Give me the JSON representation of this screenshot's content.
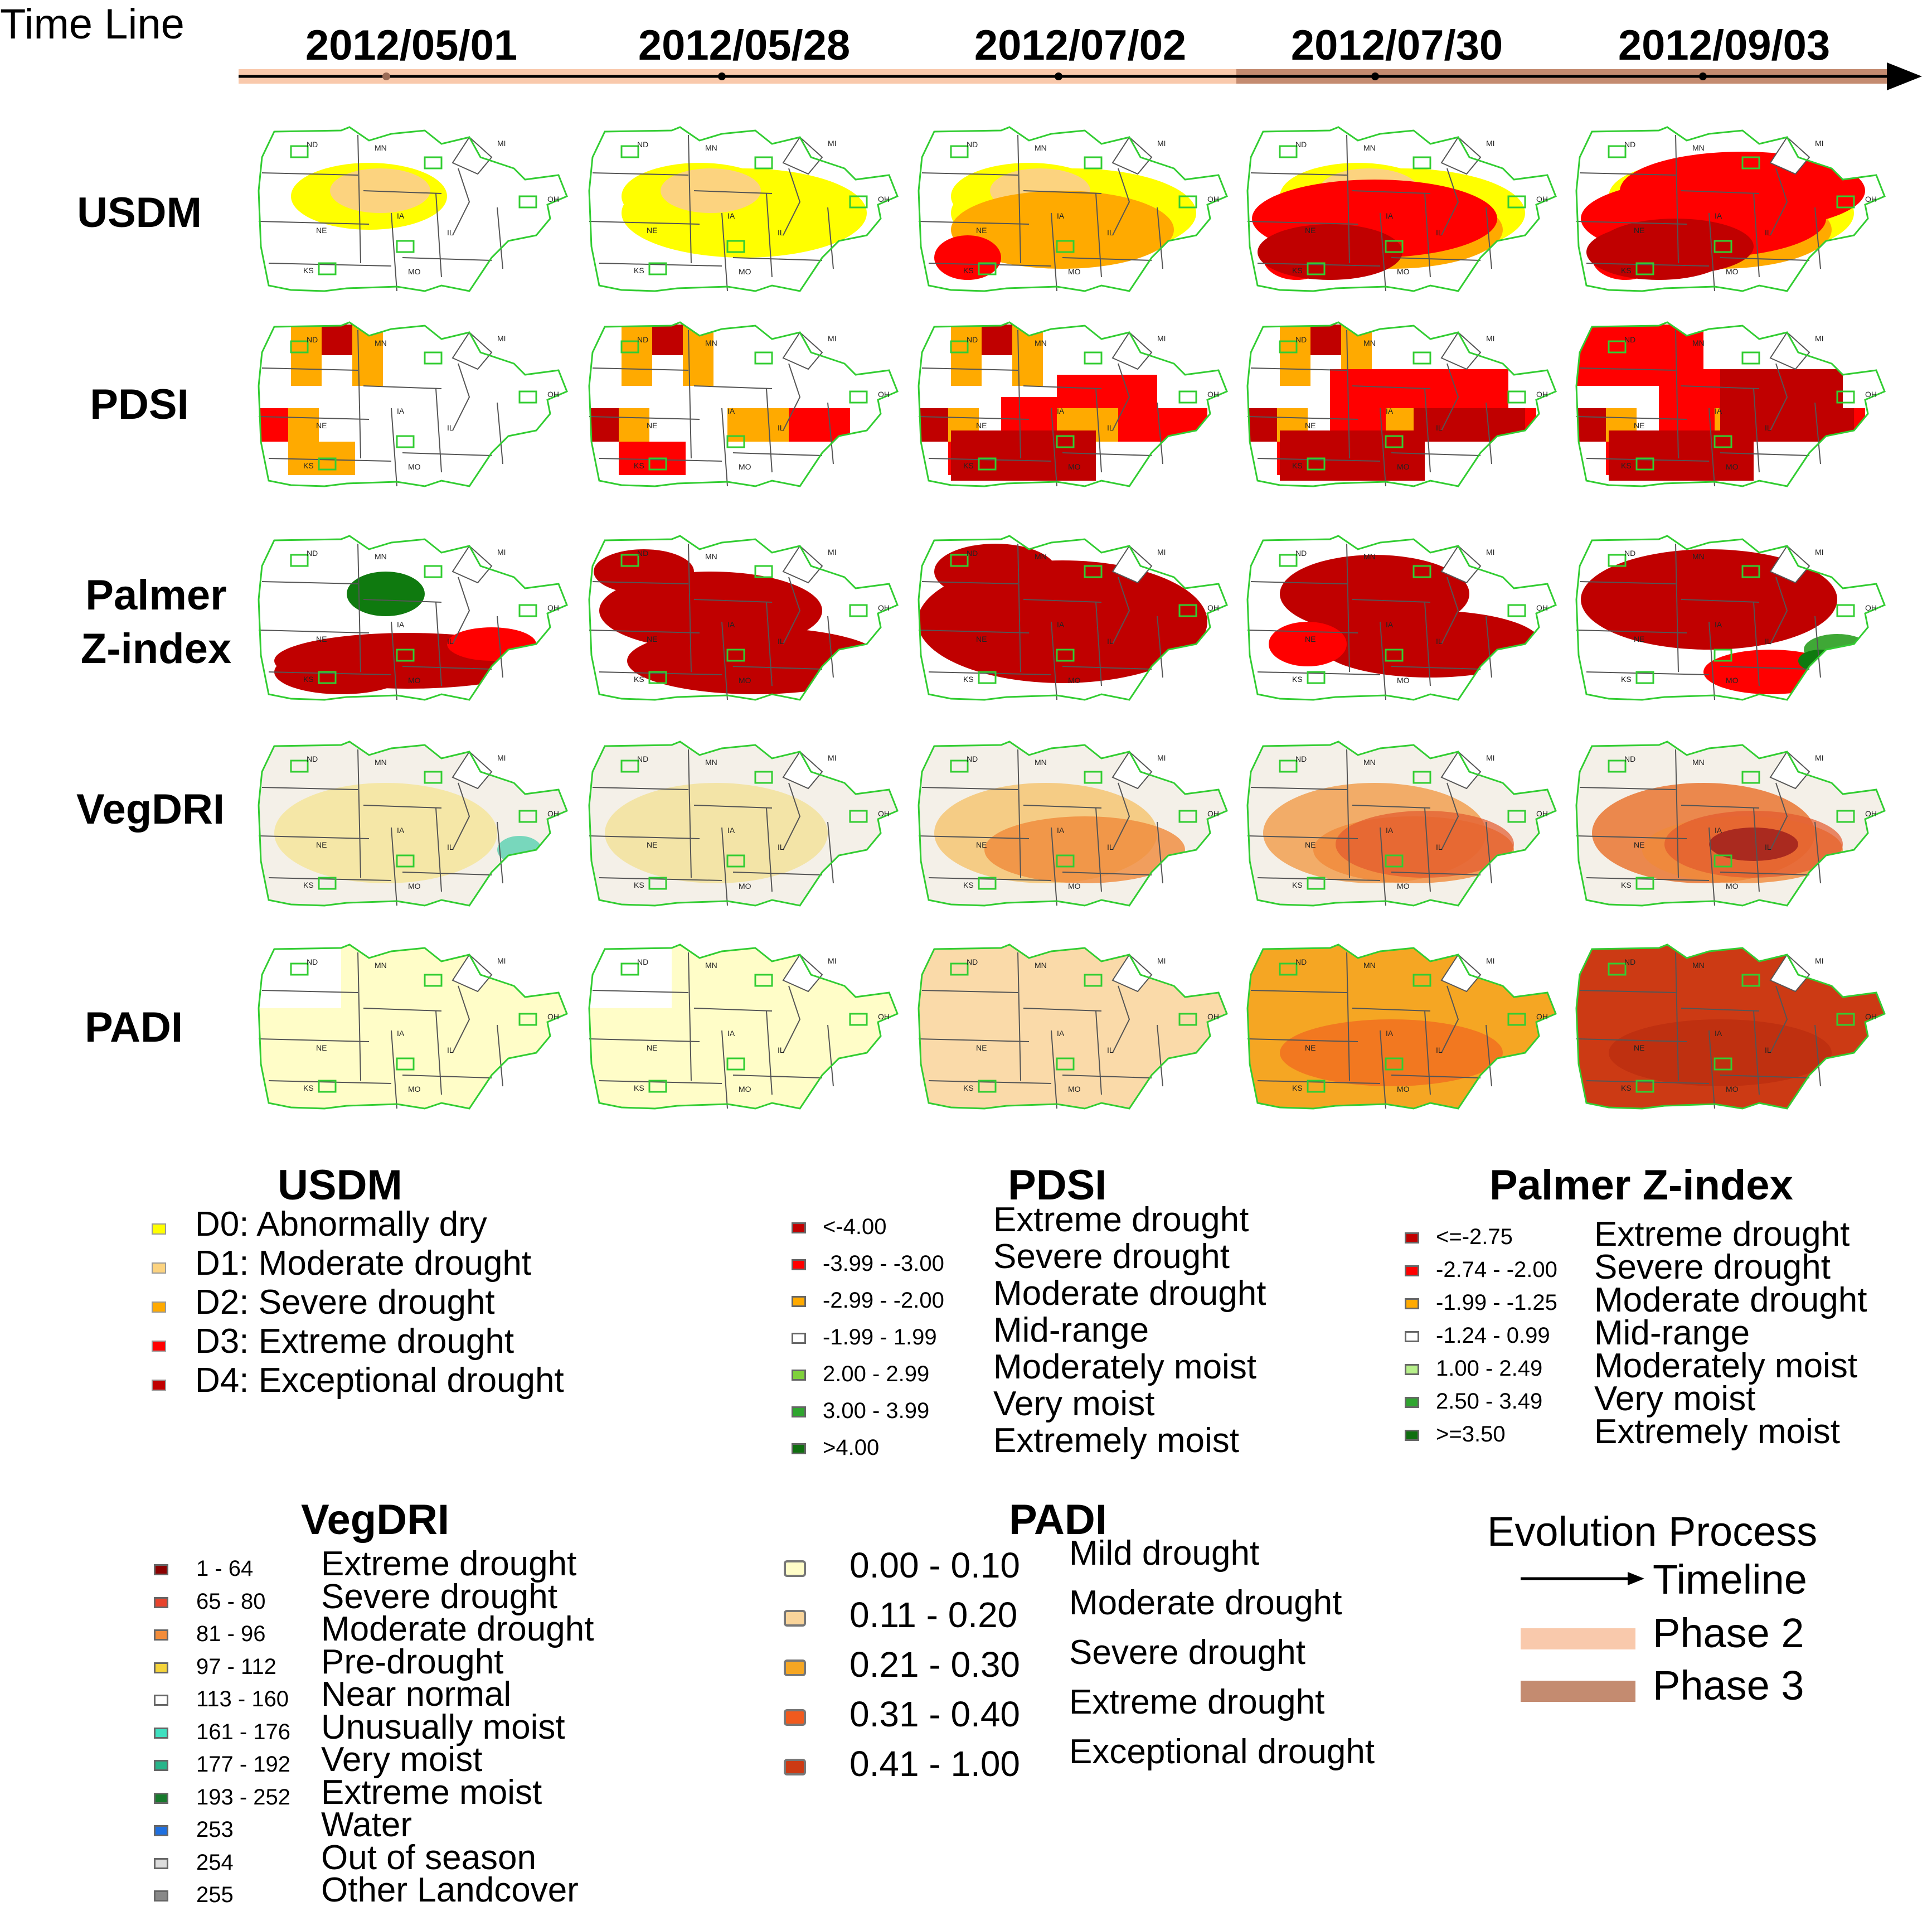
{
  "timeline": {
    "label": "Time Line",
    "dates": [
      "2012/05/01",
      "2012/05/28",
      "2012/07/02",
      "2012/07/30",
      "2012/09/03"
    ]
  },
  "rows": [
    "USDM",
    "PDSI",
    "Palmer\nZ-index",
    "VegDRI",
    "PADI"
  ],
  "state_labels": [
    "ND",
    "MN",
    "MI",
    "NE",
    "IA",
    "KS",
    "MO",
    "IL",
    "OH"
  ],
  "colors": {
    "d0": "#ffff00",
    "d1": "#fcd37f",
    "d2": "#ffaa00",
    "d3": "#ff0000",
    "d4": "#c00000",
    "green_light": "#a6f069",
    "green": "#3fa836",
    "green_dark": "#0f7a0f",
    "county_outline": "#32cd32",
    "phase2": "#f9c9ac",
    "phase3": "#c48b70"
  },
  "legends": {
    "usdm": {
      "title": "USDM",
      "items": [
        {
          "label": "D0: Abnormally dry",
          "color": "#ffff00"
        },
        {
          "label": "D1: Moderate drought",
          "color": "#fcd37f"
        },
        {
          "label": "D2: Severe drought",
          "color": "#ffaa00"
        },
        {
          "label": "D3: Extreme drought",
          "color": "#ff0000"
        },
        {
          "label": "D4: Exceptional drought",
          "color": "#c00000"
        }
      ]
    },
    "pdsi": {
      "title": "PDSI",
      "items": [
        {
          "range": "<-4.00",
          "label": "Extreme drought",
          "color": "#c00000"
        },
        {
          "range": "-3.99 - -3.00",
          "label": "Severe drought",
          "color": "#ff0000"
        },
        {
          "range": "-2.99 - -2.00",
          "label": "Moderate drought",
          "color": "#ffaa00"
        },
        {
          "range": "-1.99 - 1.99",
          "label": "Mid-range",
          "color": "#ffffff"
        },
        {
          "range": "2.00 - 2.99",
          "label": "Moderately moist",
          "color": "#7fd13b"
        },
        {
          "range": "3.00 - 3.99",
          "label": "Very moist",
          "color": "#2fa52f"
        },
        {
          "range": ">4.00",
          "label": "Extremely moist",
          "color": "#0f6f0f"
        }
      ]
    },
    "zindex": {
      "title": "Palmer Z-index",
      "items": [
        {
          "range": "<=-2.75",
          "label": "Extreme drought",
          "color": "#c00000"
        },
        {
          "range": "-2.74 - -2.00",
          "label": "Severe drought",
          "color": "#ff0000"
        },
        {
          "range": "-1.99 - -1.25",
          "label": "Moderate drought",
          "color": "#ffaa00"
        },
        {
          "range": "-1.24 - 0.99",
          "label": "Mid-range",
          "color": "#ffffff"
        },
        {
          "range": "1.00 - 2.49",
          "label": "Moderately moist",
          "color": "#b7f08a"
        },
        {
          "range": "2.50 - 3.49",
          "label": "Very moist",
          "color": "#2fa52f"
        },
        {
          "range": ">=3.50",
          "label": "Extremely moist",
          "color": "#0f6f0f"
        }
      ]
    },
    "vegdri": {
      "title": "VegDRI",
      "items": [
        {
          "range": "1 - 64",
          "label": "Extreme drought",
          "color": "#8b0000"
        },
        {
          "range": "65 - 80",
          "label": "Severe drought",
          "color": "#e8432c"
        },
        {
          "range": "81 - 96",
          "label": "Moderate drought",
          "color": "#f28c3a"
        },
        {
          "range": "97 - 112",
          "label": "Pre-drought",
          "color": "#f5d43b"
        },
        {
          "range": "113 - 160",
          "label": "Near normal",
          "color": "#ffffff"
        },
        {
          "range": "161 - 176",
          "label": "Unusually moist",
          "color": "#3fe0c0"
        },
        {
          "range": "177 - 192",
          "label": "Very moist",
          "color": "#27b58a"
        },
        {
          "range": "193 - 252",
          "label": "Extreme moist",
          "color": "#167a2c"
        },
        {
          "range": "253",
          "label": "Water",
          "color": "#1e6fe0"
        },
        {
          "range": "254",
          "label": "Out of season",
          "color": "#dddddd"
        },
        {
          "range": "255",
          "label": "Other  Landcover",
          "color": "#888888"
        }
      ]
    },
    "padi": {
      "title": "PADI",
      "items": [
        {
          "range": "0.00 - 0.10",
          "label": "Mild drought",
          "color": "#fffdc8"
        },
        {
          "range": "0.11 - 0.20",
          "label": "Moderate drought",
          "color": "#f9d49a"
        },
        {
          "range": "0.21 - 0.30",
          "label": "Severe drought",
          "color": "#f5a623"
        },
        {
          "range": "0.31 - 0.40",
          "label": "Extreme drought",
          "color": "#f05a1e"
        },
        {
          "range": "0.41 - 1.00",
          "label": "Exceptional drought",
          "color": "#cc3a14"
        }
      ]
    },
    "evolution": {
      "title": "Evolution Process",
      "timeline": "Timeline",
      "phase2": "Phase 2",
      "phase3": "Phase 3"
    }
  }
}
